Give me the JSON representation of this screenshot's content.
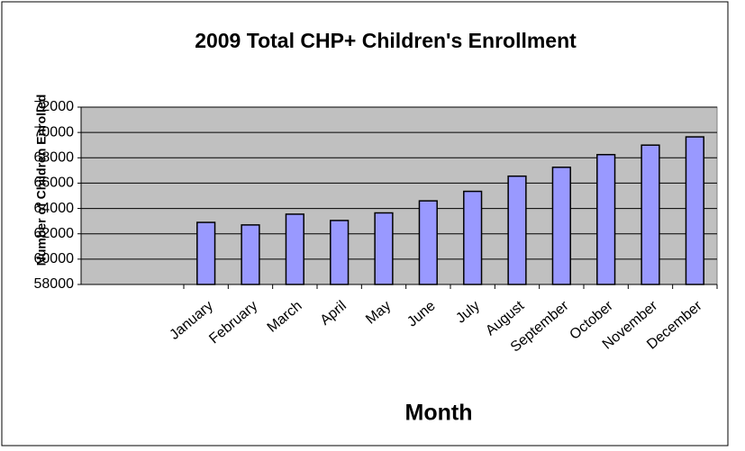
{
  "chart_data": {
    "type": "bar",
    "title": "2009 Total CHP+ Children's Enrollment",
    "x_label": "Month",
    "y_label": "Number of Children Enrolled",
    "categories": [
      "January",
      "February",
      "March",
      "April",
      "May",
      "June",
      "July",
      "August",
      "September",
      "October",
      "November",
      "December"
    ],
    "values": [
      62900,
      62700,
      63550,
      63050,
      63650,
      64600,
      65350,
      66550,
      67250,
      68250,
      69000,
      69650
    ],
    "color": "#9999ff",
    "ylim": [
      58000,
      72000
    ],
    "yticks": [
      58000,
      60000,
      62000,
      64000,
      66000,
      68000,
      70000,
      72000
    ],
    "grid": true
  }
}
